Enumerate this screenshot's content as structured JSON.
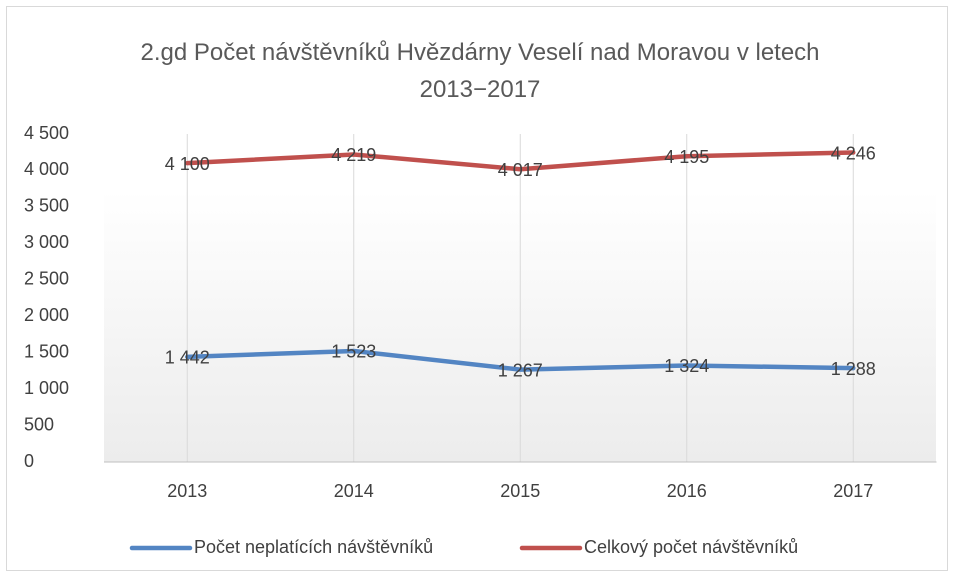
{
  "chart_data": {
    "type": "line",
    "title": "2.gd Počet návštěvníků Hvězdárny Veselí nad Moravou v letech 2013−2017",
    "categories": [
      "2013",
      "2014",
      "2015",
      "2016",
      "2017"
    ],
    "series": [
      {
        "name": "Počet neplatících návštěvníků",
        "color": "#5385c3",
        "values": [
          1442,
          1523,
          1267,
          1324,
          1288
        ],
        "value_labels": [
          "1 442",
          "1 523",
          "1 267",
          "1 324",
          "1 288"
        ]
      },
      {
        "name": "Celkový počet návštěvníků",
        "color": "#c0504d",
        "values": [
          4100,
          4219,
          4017,
          4195,
          4246
        ],
        "value_labels": [
          "4 100",
          "4 219",
          "4 017",
          "4 195",
          "4 246"
        ]
      }
    ],
    "ylim": [
      0,
      4500
    ],
    "yticks": [
      0,
      500,
      {
        "value": 1000,
        "label": "1 000"
      },
      {
        "value": 1500,
        "label": "1 500"
      },
      {
        "value": 2000,
        "label": "2 000"
      },
      {
        "value": 2500,
        "label": "2 500"
      },
      {
        "value": 3000,
        "label": "3 000"
      },
      {
        "value": 3500,
        "label": "3 500"
      },
      {
        "value": 4000,
        "label": "4 000"
      },
      {
        "value": 4500,
        "label": "4 500"
      }
    ],
    "grid": true,
    "legend": "bottom"
  }
}
